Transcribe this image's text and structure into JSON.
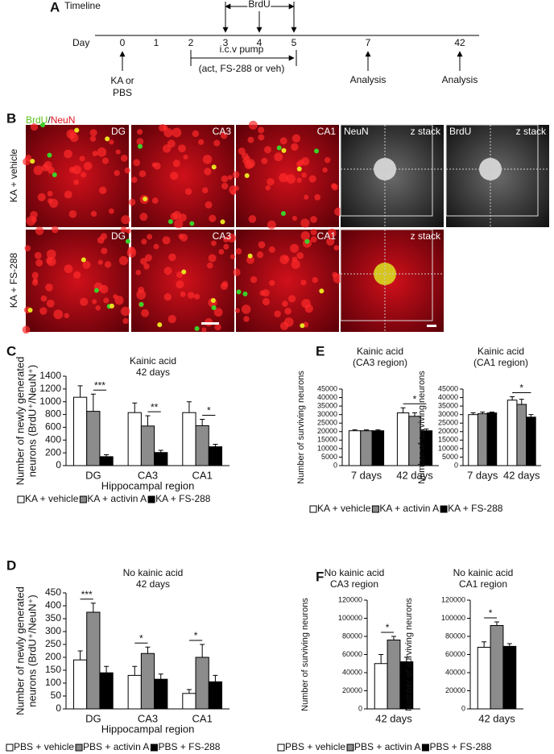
{
  "panel_a": {
    "label": "A",
    "title": "Timeline",
    "day_label": "Day",
    "days": [
      "0",
      "1",
      "2",
      "3",
      "4",
      "5",
      "7",
      "42"
    ],
    "brdu": "BrdU",
    "pump": [
      "i.c.v pump",
      "(act, FS-288 or veh)"
    ],
    "treatment": [
      "KA or",
      "PBS"
    ],
    "analysis": [
      "Analysis",
      "Analysis"
    ]
  },
  "panel_b": {
    "label": "B",
    "stain": [
      "BrdU",
      "/",
      "NeuN"
    ],
    "rows": [
      "KA + vehicle",
      "KA + FS-288"
    ],
    "tiles": [
      [
        [
          "DG"
        ],
        [
          "CA3"
        ],
        [
          "CA1"
        ],
        [
          "NeuN",
          "z stack"
        ],
        [
          "BrdU",
          "z stack"
        ]
      ],
      [
        [
          "DG"
        ],
        [
          "CA3"
        ],
        [
          "CA1"
        ],
        [
          "z stack"
        ]
      ]
    ]
  },
  "chart_data": [
    {
      "type": "bar",
      "panel": "C",
      "title": [
        "Kainic acid",
        "42 days"
      ],
      "y_label": [
        "Number of newly generated",
        "neurons (BrdU⁺/NeuN⁺)"
      ],
      "x_label": "Hippocampal region",
      "categories": [
        "DG",
        "CA3",
        "CA1"
      ],
      "series": [
        {
          "name": "KA + vehicle",
          "color": "#ffffff",
          "values": [
            1070,
            830,
            830
          ],
          "errors": [
            180,
            150,
            170
          ]
        },
        {
          "name": "KA + activin A",
          "color": "#8c8c8c",
          "values": [
            850,
            620,
            625
          ],
          "errors": [
            270,
            160,
            100
          ]
        },
        {
          "name": "KA + FS-288",
          "color": "#000000",
          "values": [
            140,
            205,
            295
          ],
          "errors": [
            30,
            35,
            40
          ]
        }
      ],
      "annotations": [
        "***",
        "**",
        "*"
      ],
      "ylim": [
        0,
        1400
      ],
      "yticks": [
        0,
        200,
        400,
        600,
        800,
        1000,
        1200,
        1400
      ]
    },
    {
      "type": "bar",
      "panel": "D",
      "title": [
        "No kainic acid",
        "42 days"
      ],
      "y_label": [
        "Number of newly generated",
        "neurons (BrdU⁺/NeuN⁺)"
      ],
      "x_label": "Hippocampal region",
      "categories": [
        "DG",
        "CA3",
        "CA1"
      ],
      "series": [
        {
          "name": "PBS + vehicle",
          "color": "#ffffff",
          "values": [
            190,
            130,
            60
          ],
          "errors": [
            35,
            35,
            15
          ]
        },
        {
          "name": "PBS + activin A",
          "color": "#8c8c8c",
          "values": [
            375,
            215,
            200
          ],
          "errors": [
            35,
            25,
            50
          ]
        },
        {
          "name": "PBS + FS-288",
          "color": "#000000",
          "values": [
            140,
            115,
            105
          ],
          "errors": [
            25,
            20,
            25
          ]
        }
      ],
      "annotations": [
        "***",
        "*",
        "*"
      ],
      "ylim": [
        0,
        450
      ],
      "yticks": [
        0,
        50,
        100,
        150,
        200,
        250,
        300,
        350,
        400,
        450
      ]
    },
    {
      "type": "bar",
      "panel": "E",
      "title": [
        "Kainic acid",
        "(CA3 region)"
      ],
      "y_label": [
        "Number of surviving neurons"
      ],
      "categories": [
        "7 days",
        "42 days"
      ],
      "series": [
        {
          "name": "KA + vehicle",
          "color": "#ffffff",
          "values": [
            20500,
            31000
          ],
          "errors": [
            500,
            3000
          ]
        },
        {
          "name": "KA + activin A",
          "color": "#8c8c8c",
          "values": [
            20500,
            29000
          ],
          "errors": [
            500,
            2000
          ]
        },
        {
          "name": "KA + FS-288",
          "color": "#000000",
          "values": [
            20500,
            20500
          ],
          "errors": [
            500,
            1000
          ]
        }
      ],
      "annotations": [
        null,
        "*"
      ],
      "ylim": [
        0,
        45000
      ],
      "yticks": [
        0,
        5000,
        10000,
        15000,
        20000,
        25000,
        30000,
        35000,
        40000,
        45000
      ]
    },
    {
      "type": "bar",
      "title": [
        "Kainic acid",
        "(CA1 region)"
      ],
      "y_label": [
        "Number of surviving neurons"
      ],
      "categories": [
        "7 days",
        "42 days"
      ],
      "series": [
        {
          "color": "#ffffff",
          "values": [
            30000,
            38500
          ],
          "errors": [
            1000,
            2000
          ]
        },
        {
          "color": "#8c8c8c",
          "values": [
            30500,
            36000
          ],
          "errors": [
            1000,
            3000
          ]
        },
        {
          "color": "#000000",
          "values": [
            31000,
            28500
          ],
          "errors": [
            500,
            1500
          ]
        }
      ],
      "annotations": [
        null,
        "*"
      ],
      "ylim": [
        0,
        45000
      ],
      "yticks": [
        0,
        5000,
        10000,
        15000,
        20000,
        25000,
        30000,
        35000,
        40000,
        45000
      ]
    },
    {
      "type": "bar",
      "panel": "F",
      "title": [
        "No kainic acid",
        "CA3 region"
      ],
      "y_label": [
        "Number of surviving neurons"
      ],
      "categories": [
        "42 days"
      ],
      "series": [
        {
          "name": "PBS + vehicle",
          "color": "#ffffff",
          "values": [
            50000
          ],
          "errors": [
            10000
          ]
        },
        {
          "name": "PBS + activin A",
          "color": "#8c8c8c",
          "values": [
            76000
          ],
          "errors": [
            4000
          ]
        },
        {
          "name": "PBS + FS-288",
          "color": "#000000",
          "values": [
            52000
          ],
          "errors": [
            5000
          ]
        }
      ],
      "annotations": [
        "*"
      ],
      "ylim": [
        0,
        120000
      ],
      "yticks": [
        0,
        20000,
        40000,
        60000,
        80000,
        100000,
        120000
      ]
    },
    {
      "type": "bar",
      "title": [
        "No kainic acid",
        "CA1 region"
      ],
      "y_label": [
        "Number of surviving neurons"
      ],
      "categories": [
        "42 days"
      ],
      "series": [
        {
          "color": "#ffffff",
          "values": [
            68000
          ],
          "errors": [
            6000
          ]
        },
        {
          "color": "#8c8c8c",
          "values": [
            92000
          ],
          "errors": [
            4000
          ]
        },
        {
          "color": "#000000",
          "values": [
            69000
          ],
          "errors": [
            3000
          ]
        }
      ],
      "annotations": [
        "*"
      ],
      "ylim": [
        0,
        120000
      ],
      "yticks": [
        0,
        20000,
        40000,
        60000,
        80000,
        100000,
        120000
      ]
    }
  ]
}
